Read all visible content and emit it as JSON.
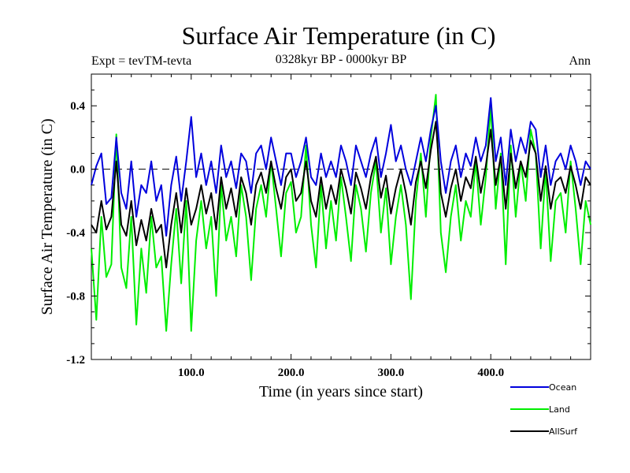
{
  "chart_data": {
    "type": "line",
    "title": "Surface Air Temperature (in C)",
    "subtitle_left": "Expt = tevTM-tevta",
    "subtitle_center": "0328kyr BP - 0000kyr BP",
    "subtitle_right": "Ann",
    "xlabel": "Time (in years since start)",
    "ylabel": "Surface Air Temperature (in C)",
    "xlim": [
      0,
      500
    ],
    "ylim": [
      -1.2,
      0.6
    ],
    "xticks": [
      {
        "value": 100,
        "label": "100.0"
      },
      {
        "value": 200,
        "label": "200.0"
      },
      {
        "value": 300,
        "label": "300.0"
      },
      {
        "value": 400,
        "label": "400.0"
      }
    ],
    "yticks": [
      {
        "value": 0.4,
        "label": "0.4"
      },
      {
        "value": 0.0,
        "label": "0.0"
      },
      {
        "value": -0.4,
        "label": "-0.4"
      },
      {
        "value": -0.8,
        "label": "-0.8"
      },
      {
        "value": -1.2,
        "label": "-1.2"
      }
    ],
    "reference_line": {
      "y": 0.0,
      "style": "dashed"
    },
    "legend": {
      "placement": "bottom-right"
    },
    "series": [
      {
        "name": "Land",
        "color": "#00ee00",
        "x": [
          0,
          5,
          10,
          15,
          20,
          25,
          30,
          35,
          40,
          45,
          50,
          55,
          60,
          65,
          70,
          75,
          80,
          85,
          90,
          95,
          100,
          105,
          110,
          115,
          120,
          125,
          130,
          135,
          140,
          145,
          150,
          155,
          160,
          165,
          170,
          175,
          180,
          185,
          190,
          195,
          200,
          205,
          210,
          215,
          220,
          225,
          230,
          235,
          240,
          245,
          250,
          255,
          260,
          265,
          270,
          275,
          280,
          285,
          290,
          295,
          300,
          305,
          310,
          315,
          320,
          325,
          330,
          335,
          340,
          345,
          350,
          355,
          360,
          365,
          370,
          375,
          380,
          385,
          390,
          395,
          400,
          405,
          410,
          415,
          420,
          425,
          430,
          435,
          440,
          445,
          450,
          455,
          460,
          465,
          470,
          475,
          480,
          485,
          490,
          495,
          500
        ],
        "values": [
          -0.5,
          -0.95,
          -0.3,
          -0.68,
          -0.6,
          0.22,
          -0.62,
          -0.75,
          -0.3,
          -0.98,
          -0.5,
          -0.78,
          -0.3,
          -0.62,
          -0.55,
          -1.02,
          -0.6,
          -0.25,
          -0.72,
          -0.2,
          -1.02,
          -0.45,
          -0.2,
          -0.5,
          -0.3,
          -0.8,
          -0.1,
          -0.45,
          -0.3,
          -0.55,
          -0.1,
          -0.3,
          -0.7,
          -0.25,
          -0.1,
          -0.3,
          0.05,
          -0.25,
          -0.55,
          -0.15,
          -0.08,
          -0.4,
          -0.3,
          0.15,
          -0.35,
          -0.62,
          -0.1,
          -0.5,
          -0.2,
          -0.45,
          -0.05,
          -0.3,
          -0.58,
          -0.1,
          -0.25,
          -0.52,
          -0.15,
          0.05,
          -0.4,
          -0.12,
          -0.6,
          -0.3,
          -0.1,
          -0.35,
          -0.82,
          -0.2,
          0.1,
          -0.3,
          0.2,
          0.47,
          -0.4,
          -0.65,
          -0.3,
          -0.1,
          -0.45,
          -0.2,
          -0.3,
          0.05,
          -0.35,
          -0.05,
          0.4,
          -0.25,
          0.1,
          -0.6,
          0.15,
          -0.3,
          0.05,
          -0.2,
          0.25,
          0.1,
          -0.5,
          0.0,
          -0.58,
          -0.2,
          -0.15,
          -0.4,
          0.05,
          -0.25,
          -0.6,
          -0.2,
          -0.35
        ]
      },
      {
        "name": "AllSurf",
        "color": "#000000",
        "x": [
          0,
          5,
          10,
          15,
          20,
          25,
          30,
          35,
          40,
          45,
          50,
          55,
          60,
          65,
          70,
          75,
          80,
          85,
          90,
          95,
          100,
          105,
          110,
          115,
          120,
          125,
          130,
          135,
          140,
          145,
          150,
          155,
          160,
          165,
          170,
          175,
          180,
          185,
          190,
          195,
          200,
          205,
          210,
          215,
          220,
          225,
          230,
          235,
          240,
          245,
          250,
          255,
          260,
          265,
          270,
          275,
          280,
          285,
          290,
          295,
          300,
          305,
          310,
          315,
          320,
          325,
          330,
          335,
          340,
          345,
          350,
          355,
          360,
          365,
          370,
          375,
          380,
          385,
          390,
          395,
          400,
          405,
          410,
          415,
          420,
          425,
          430,
          435,
          440,
          445,
          450,
          455,
          460,
          465,
          470,
          475,
          480,
          485,
          490,
          495,
          500
        ],
        "values": [
          -0.35,
          -0.4,
          -0.2,
          -0.38,
          -0.3,
          0.05,
          -0.35,
          -0.42,
          -0.2,
          -0.48,
          -0.32,
          -0.45,
          -0.25,
          -0.4,
          -0.35,
          -0.62,
          -0.35,
          -0.15,
          -0.4,
          -0.12,
          -0.35,
          -0.25,
          -0.1,
          -0.28,
          -0.15,
          -0.38,
          -0.05,
          -0.25,
          -0.12,
          -0.3,
          -0.05,
          -0.15,
          -0.35,
          -0.1,
          -0.02,
          -0.15,
          0.05,
          -0.12,
          -0.25,
          -0.05,
          0.0,
          -0.2,
          -0.15,
          0.05,
          -0.2,
          -0.3,
          -0.05,
          -0.25,
          -0.1,
          -0.22,
          0.0,
          -0.12,
          -0.28,
          -0.02,
          -0.12,
          -0.25,
          -0.05,
          0.08,
          -0.18,
          -0.04,
          -0.28,
          -0.12,
          0.0,
          -0.15,
          -0.35,
          -0.08,
          0.05,
          -0.12,
          0.12,
          0.3,
          -0.15,
          -0.3,
          -0.12,
          0.0,
          -0.2,
          -0.05,
          -0.12,
          0.08,
          -0.15,
          0.02,
          0.25,
          -0.1,
          0.08,
          -0.25,
          0.1,
          -0.12,
          0.05,
          -0.05,
          0.18,
          0.1,
          -0.2,
          0.02,
          -0.25,
          -0.08,
          -0.05,
          -0.15,
          0.02,
          -0.1,
          -0.25,
          -0.05,
          -0.1
        ]
      },
      {
        "name": "Ocean",
        "color": "#0000dd",
        "x": [
          0,
          5,
          10,
          15,
          20,
          25,
          30,
          35,
          40,
          45,
          50,
          55,
          60,
          65,
          70,
          75,
          80,
          85,
          90,
          95,
          100,
          105,
          110,
          115,
          120,
          125,
          130,
          135,
          140,
          145,
          150,
          155,
          160,
          165,
          170,
          175,
          180,
          185,
          190,
          195,
          200,
          205,
          210,
          215,
          220,
          225,
          230,
          235,
          240,
          245,
          250,
          255,
          260,
          265,
          270,
          275,
          280,
          285,
          290,
          295,
          300,
          305,
          310,
          315,
          320,
          325,
          330,
          335,
          340,
          345,
          350,
          355,
          360,
          365,
          370,
          375,
          380,
          385,
          390,
          395,
          400,
          405,
          410,
          415,
          420,
          425,
          430,
          435,
          440,
          445,
          450,
          455,
          460,
          465,
          470,
          475,
          480,
          485,
          490,
          495,
          500
        ],
        "values": [
          -0.1,
          0.02,
          0.1,
          -0.22,
          -0.18,
          0.2,
          -0.15,
          -0.25,
          0.05,
          -0.3,
          -0.1,
          -0.15,
          0.05,
          -0.2,
          -0.1,
          -0.42,
          -0.1,
          0.08,
          -0.2,
          0.05,
          0.33,
          -0.05,
          0.1,
          -0.1,
          0.05,
          -0.15,
          0.15,
          -0.05,
          0.05,
          -0.12,
          0.1,
          0.05,
          -0.15,
          0.1,
          0.15,
          0.0,
          0.2,
          0.05,
          -0.1,
          0.1,
          0.1,
          -0.05,
          0.05,
          0.2,
          -0.05,
          -0.1,
          0.1,
          -0.05,
          0.05,
          -0.05,
          0.15,
          0.05,
          -0.1,
          0.15,
          0.05,
          -0.05,
          0.1,
          0.2,
          -0.05,
          0.1,
          0.28,
          0.05,
          0.15,
          0.0,
          -0.1,
          0.05,
          0.2,
          0.05,
          0.25,
          0.4,
          0.05,
          -0.15,
          0.05,
          0.15,
          -0.05,
          0.1,
          0.02,
          0.2,
          0.05,
          0.15,
          0.45,
          0.05,
          0.2,
          -0.1,
          0.25,
          0.05,
          0.2,
          0.1,
          0.3,
          0.25,
          -0.05,
          0.15,
          -0.1,
          0.05,
          0.1,
          0.0,
          0.15,
          0.05,
          -0.1,
          0.05,
          0.0
        ]
      }
    ]
  }
}
